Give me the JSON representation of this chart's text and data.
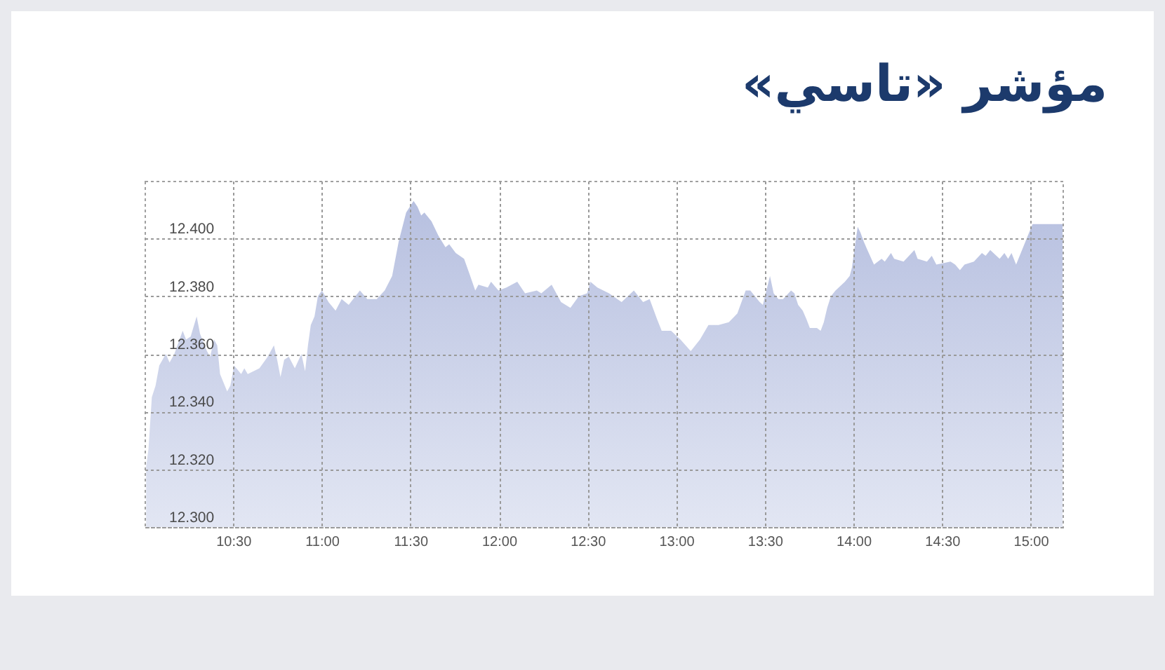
{
  "chart_data": {
    "type": "area",
    "title": "مؤشر «تاسي»",
    "x": [
      10.009,
      10.022,
      10.041,
      10.062,
      10.083,
      10.12,
      10.141,
      10.168,
      10.215,
      10.234,
      10.26,
      10.294,
      10.313,
      10.352,
      10.37,
      10.392,
      10.41,
      10.426,
      10.466,
      10.484,
      10.505,
      10.545,
      10.563,
      10.582,
      10.648,
      10.695,
      10.73,
      10.748,
      10.767,
      10.788,
      10.814,
      10.848,
      10.885,
      10.906,
      10.922,
      10.938,
      10.959,
      10.978,
      11.001,
      11.038,
      11.078,
      11.112,
      11.152,
      11.215,
      11.257,
      11.31,
      11.355,
      11.397,
      11.434,
      11.476,
      11.518,
      11.54,
      11.561,
      11.579,
      11.619,
      11.658,
      11.698,
      11.719,
      11.756,
      11.803,
      11.832,
      11.866,
      11.884,
      11.937,
      11.955,
      11.997,
      12.042,
      12.103,
      12.147,
      12.213,
      12.239,
      12.297,
      12.35,
      12.403,
      12.45,
      12.497,
      12.516,
      12.555,
      12.621,
      12.692,
      12.761,
      12.813,
      12.85,
      12.892,
      12.918,
      12.971,
      13.024,
      13.082,
      13.134,
      13.182,
      13.239,
      13.297,
      13.345,
      13.392,
      13.418,
      13.471,
      13.489,
      13.529,
      13.55,
      13.577,
      13.603,
      13.648,
      13.667,
      13.688,
      13.714,
      13.735,
      13.754,
      13.794,
      13.815,
      13.833,
      13.852,
      13.873,
      13.899,
      13.952,
      13.979,
      13.992,
      14.005,
      14.024,
      14.04,
      14.058,
      14.079,
      14.116,
      14.159,
      14.177,
      14.212,
      14.23,
      14.283,
      14.344,
      14.362,
      14.415,
      14.442,
      14.468,
      14.548,
      14.574,
      14.601,
      14.627,
      14.68,
      14.725,
      14.746,
      14.772,
      14.825,
      14.852,
      14.873,
      14.892,
      14.918,
      14.971,
      15.011,
      15.18
    ],
    "values": [
      12.321,
      12.327,
      12.345,
      12.349,
      12.356,
      12.36,
      12.357,
      12.36,
      12.368,
      12.365,
      12.366,
      12.373,
      12.367,
      12.361,
      12.359,
      12.365,
      12.363,
      12.353,
      12.347,
      12.349,
      12.356,
      12.353,
      12.355,
      12.353,
      12.355,
      12.359,
      12.363,
      12.358,
      12.352,
      12.358,
      12.359,
      12.355,
      12.36,
      12.354,
      12.363,
      12.37,
      12.373,
      12.38,
      12.382,
      12.378,
      12.375,
      12.379,
      12.377,
      12.382,
      12.379,
      12.379,
      12.382,
      12.387,
      12.399,
      12.409,
      12.413,
      12.411,
      12.408,
      12.409,
      12.406,
      12.401,
      12.397,
      12.398,
      12.395,
      12.393,
      12.388,
      12.382,
      12.384,
      12.383,
      12.385,
      12.382,
      12.383,
      12.385,
      12.381,
      12.382,
      12.381,
      12.384,
      12.378,
      12.376,
      12.38,
      12.381,
      12.385,
      12.383,
      12.381,
      12.378,
      12.382,
      12.378,
      12.379,
      12.372,
      12.368,
      12.368,
      12.365,
      12.361,
      12.365,
      12.37,
      12.37,
      12.371,
      12.374,
      12.382,
      12.382,
      12.378,
      12.377,
      12.387,
      12.381,
      12.379,
      12.379,
      12.382,
      12.381,
      12.377,
      12.375,
      12.372,
      12.369,
      12.369,
      12.368,
      12.371,
      12.376,
      12.38,
      12.382,
      12.385,
      12.387,
      12.39,
      12.396,
      12.404,
      12.402,
      12.399,
      12.396,
      12.391,
      12.393,
      12.392,
      12.395,
      12.393,
      12.392,
      12.396,
      12.393,
      12.392,
      12.394,
      12.391,
      12.392,
      12.391,
      12.389,
      12.391,
      12.392,
      12.395,
      12.394,
      12.396,
      12.393,
      12.395,
      12.393,
      12.395,
      12.391,
      12.399,
      12.405,
      12.405
    ],
    "color": "#b7c0e0",
    "xlim": [
      10,
      15.18
    ],
    "xticks": [
      {
        "value": 10.5,
        "label": "10:30"
      },
      {
        "value": 11,
        "label": "11:00"
      },
      {
        "value": 11.5,
        "label": "11:30"
      },
      {
        "value": 12,
        "label": "12:00"
      },
      {
        "value": 12.5,
        "label": "12:30"
      },
      {
        "value": 13,
        "label": "13:00"
      },
      {
        "value": 13.5,
        "label": "13:30"
      },
      {
        "value": 14,
        "label": "14:00"
      },
      {
        "value": 14.5,
        "label": "14:30"
      },
      {
        "value": 15,
        "label": "15:00"
      }
    ],
    "ylim": [
      12.3,
      12.42
    ],
    "yticks": [
      {
        "value": 12.3,
        "label": "12.300"
      },
      {
        "value": 12.32,
        "label": "12.320"
      },
      {
        "value": 12.34,
        "label": "12.340"
      },
      {
        "value": 12.36,
        "label": "12.360"
      },
      {
        "value": 12.38,
        "label": "12.380"
      },
      {
        "value": 12.4,
        "label": "12.400"
      }
    ],
    "grid": true
  }
}
